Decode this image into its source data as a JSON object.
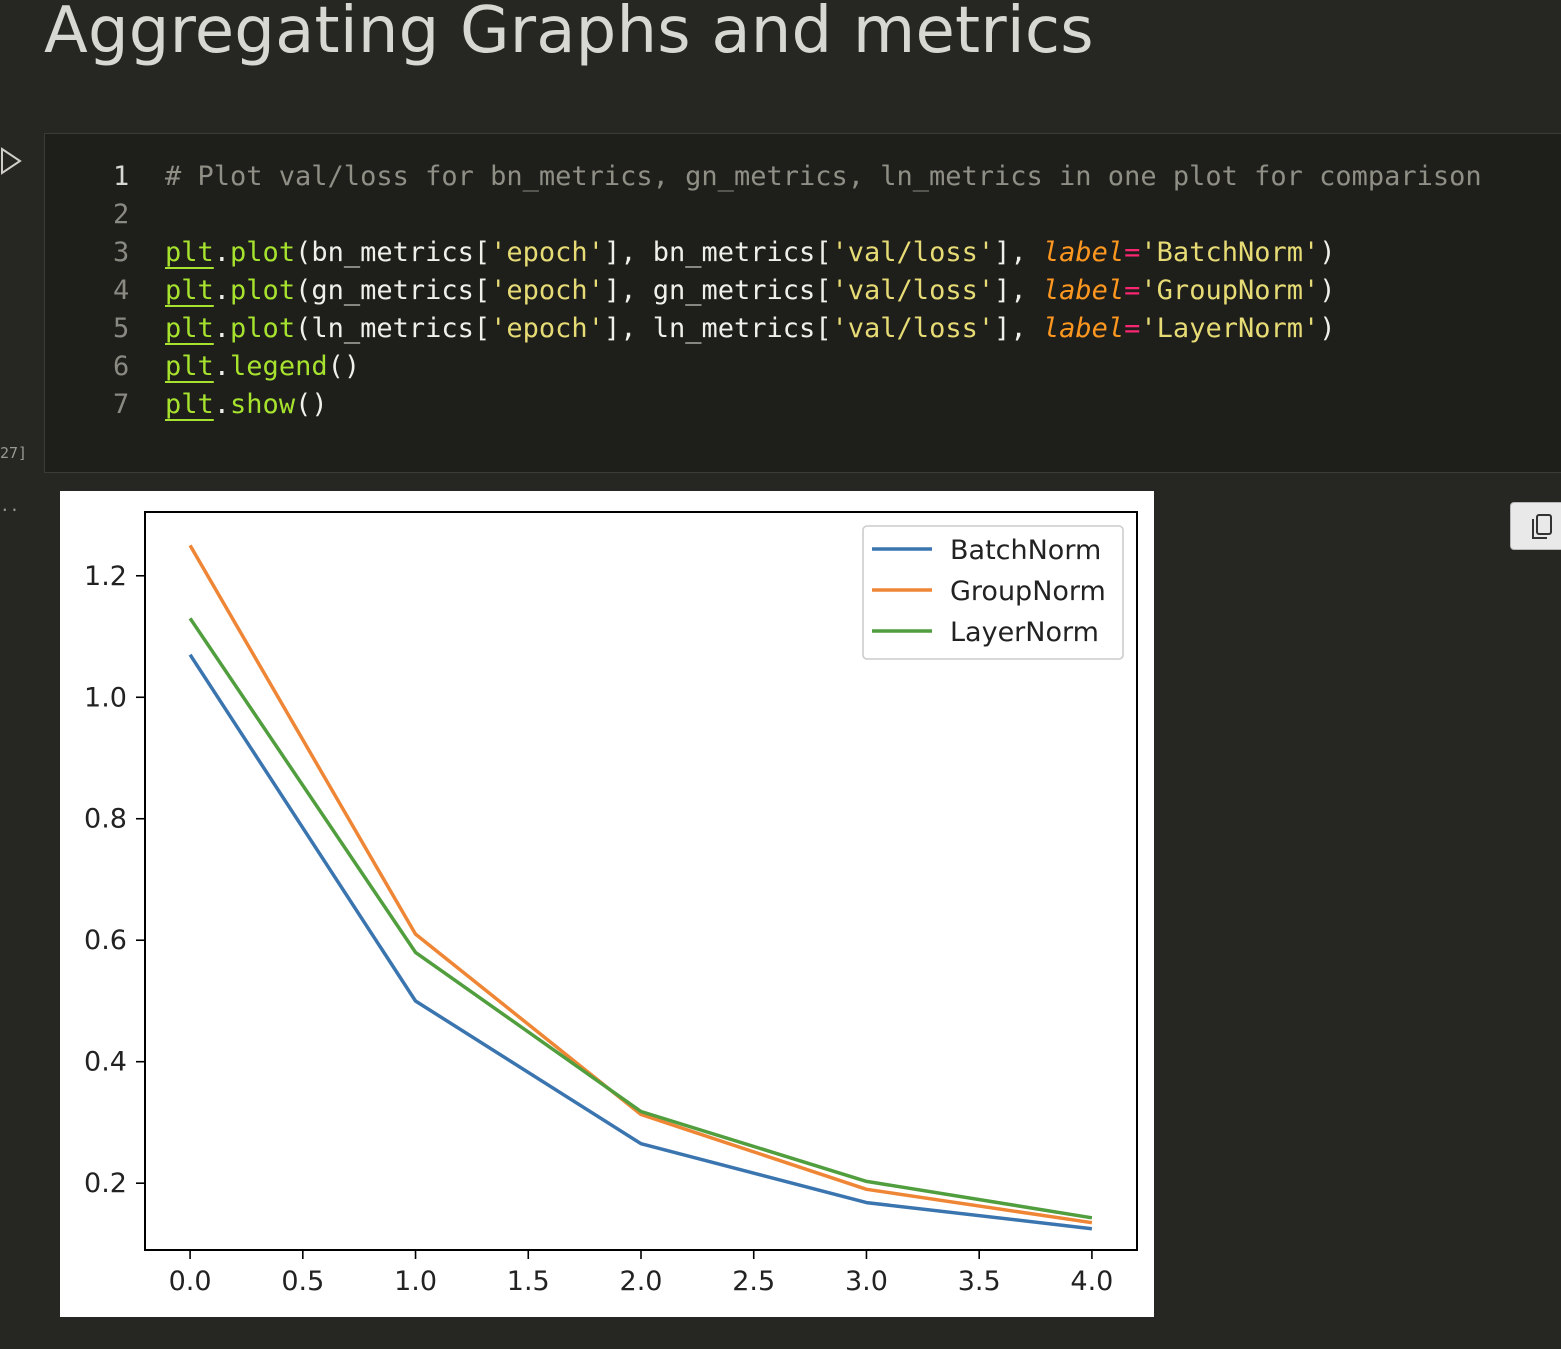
{
  "heading": "Aggregating Graphs and metrics",
  "cell": {
    "execution_count": "27]",
    "output_prompt": "..",
    "lines": [
      {
        "num": "1",
        "tokens": [
          {
            "t": "# Plot val/loss for bn_metrics, gn_metrics, ln_metrics in one plot for comparison",
            "c": "t-comment"
          }
        ]
      },
      {
        "num": "2",
        "tokens": []
      },
      {
        "num": "3",
        "tokens": [
          {
            "t": "plt",
            "c": "t-mod"
          },
          {
            "t": ".",
            "c": "t-p"
          },
          {
            "t": "plot",
            "c": "t-fn"
          },
          {
            "t": "(bn_metrics[",
            "c": "t-id"
          },
          {
            "t": "'epoch'",
            "c": "t-str"
          },
          {
            "t": "], bn_metrics[",
            "c": "t-id"
          },
          {
            "t": "'val/loss'",
            "c": "t-str"
          },
          {
            "t": "], ",
            "c": "t-id"
          },
          {
            "t": "label",
            "c": "t-kw"
          },
          {
            "t": "=",
            "c": "t-op"
          },
          {
            "t": "'BatchNorm'",
            "c": "t-str"
          },
          {
            "t": ")",
            "c": "t-p"
          }
        ]
      },
      {
        "num": "4",
        "tokens": [
          {
            "t": "plt",
            "c": "t-mod"
          },
          {
            "t": ".",
            "c": "t-p"
          },
          {
            "t": "plot",
            "c": "t-fn"
          },
          {
            "t": "(gn_metrics[",
            "c": "t-id"
          },
          {
            "t": "'epoch'",
            "c": "t-str"
          },
          {
            "t": "], gn_metrics[",
            "c": "t-id"
          },
          {
            "t": "'val/loss'",
            "c": "t-str"
          },
          {
            "t": "], ",
            "c": "t-id"
          },
          {
            "t": "label",
            "c": "t-kw"
          },
          {
            "t": "=",
            "c": "t-op"
          },
          {
            "t": "'GroupNorm'",
            "c": "t-str"
          },
          {
            "t": ")",
            "c": "t-p"
          }
        ]
      },
      {
        "num": "5",
        "tokens": [
          {
            "t": "plt",
            "c": "t-mod"
          },
          {
            "t": ".",
            "c": "t-p"
          },
          {
            "t": "plot",
            "c": "t-fn"
          },
          {
            "t": "(ln_metrics[",
            "c": "t-id"
          },
          {
            "t": "'epoch'",
            "c": "t-str"
          },
          {
            "t": "], ln_metrics[",
            "c": "t-id"
          },
          {
            "t": "'val/loss'",
            "c": "t-str"
          },
          {
            "t": "], ",
            "c": "t-id"
          },
          {
            "t": "label",
            "c": "t-kw"
          },
          {
            "t": "=",
            "c": "t-op"
          },
          {
            "t": "'LayerNorm'",
            "c": "t-str"
          },
          {
            "t": ")",
            "c": "t-p"
          }
        ]
      },
      {
        "num": "6",
        "tokens": [
          {
            "t": "plt",
            "c": "t-mod"
          },
          {
            "t": ".",
            "c": "t-p"
          },
          {
            "t": "legend",
            "c": "t-fn"
          },
          {
            "t": "()",
            "c": "t-p"
          }
        ]
      },
      {
        "num": "7",
        "tokens": [
          {
            "t": "plt",
            "c": "t-mod"
          },
          {
            "t": ".",
            "c": "t-p"
          },
          {
            "t": "show",
            "c": "t-fn"
          },
          {
            "t": "()",
            "c": "t-p"
          }
        ]
      }
    ]
  },
  "icons": {
    "run": "play-icon",
    "copy": "copy-icon"
  },
  "chart_data": {
    "type": "line",
    "x": [
      0,
      1,
      2,
      3,
      4
    ],
    "series": [
      {
        "name": "BatchNorm",
        "color": "#3b75af",
        "values": [
          1.07,
          0.5,
          0.265,
          0.168,
          0.125
        ]
      },
      {
        "name": "GroupNorm",
        "color": "#ef8636",
        "values": [
          1.25,
          0.61,
          0.313,
          0.19,
          0.135
        ]
      },
      {
        "name": "LayerNorm",
        "color": "#519e3e",
        "values": [
          1.13,
          0.58,
          0.318,
          0.203,
          0.143
        ]
      }
    ],
    "xticks": [
      0,
      0.5,
      1,
      1.5,
      2,
      2.5,
      3,
      3.5,
      4
    ],
    "xtick_labels": [
      "0.0",
      "0.5",
      "1.0",
      "1.5",
      "2.0",
      "2.5",
      "3.0",
      "3.5",
      "4.0"
    ],
    "yticks": [
      0.2,
      0.4,
      0.6,
      0.8,
      1.0,
      1.2
    ],
    "ytick_labels": [
      "0.2",
      "0.4",
      "0.6",
      "0.8",
      "1.0",
      "1.2"
    ],
    "xlim": [
      -0.2,
      4.2
    ],
    "ylim": [
      0.09,
      1.305
    ],
    "grid": false,
    "legend": "top-right",
    "title": "",
    "xlabel": "",
    "ylabel": ""
  }
}
